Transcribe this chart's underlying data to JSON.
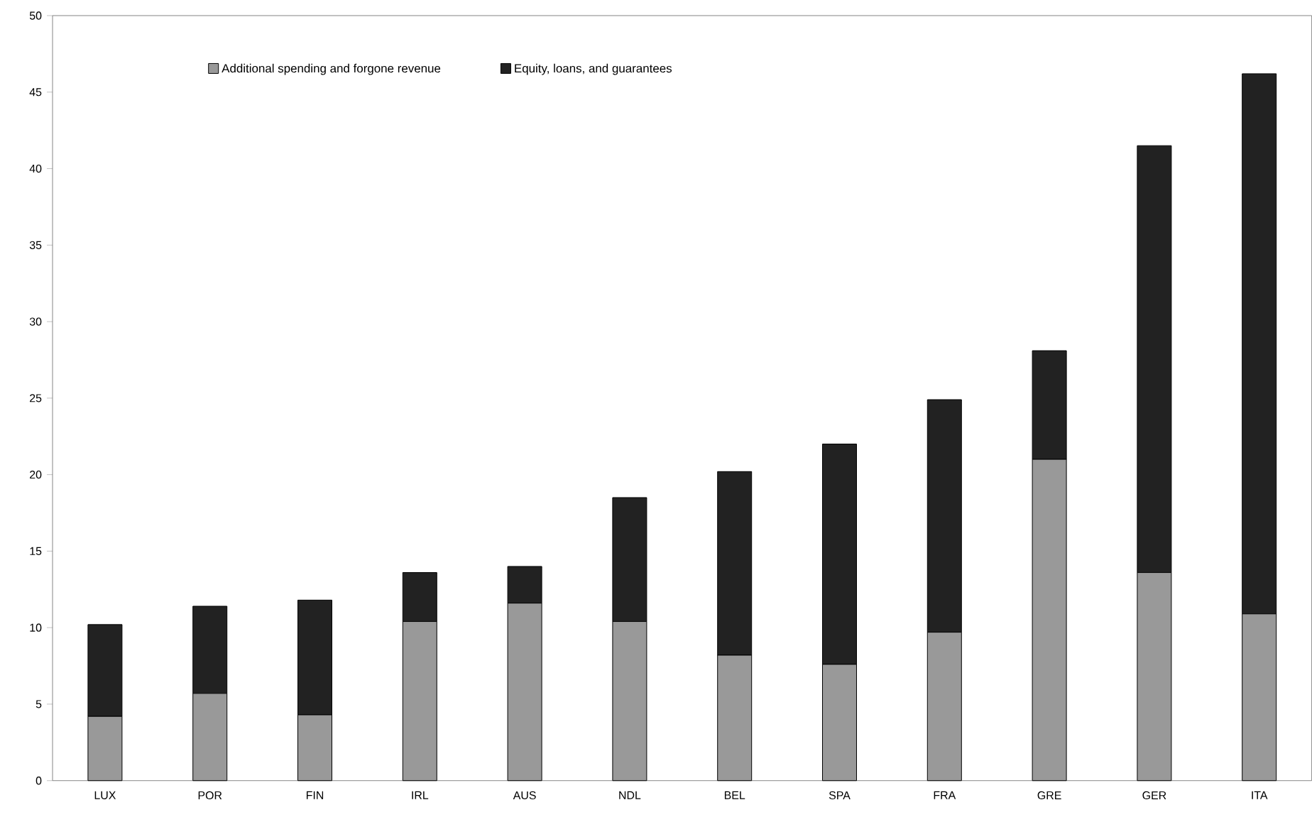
{
  "chart_data": {
    "type": "bar",
    "stacked": true,
    "categories": [
      "LUX",
      "POR",
      "FIN",
      "IRL",
      "AUS",
      "NDL",
      "BEL",
      "SPA",
      "FRA",
      "GRE",
      "GER",
      "ITA"
    ],
    "series": [
      {
        "name": "Additional spending and forgone revenue",
        "color": "#999999",
        "values": [
          4.2,
          5.7,
          4.3,
          10.4,
          11.6,
          10.4,
          8.2,
          7.6,
          9.7,
          21.0,
          13.6,
          10.9
        ]
      },
      {
        "name": "Equity, loans, and guarantees",
        "color": "#222222",
        "values": [
          6.0,
          5.7,
          7.5,
          3.2,
          2.4,
          8.1,
          12.0,
          14.4,
          15.2,
          7.1,
          27.9,
          35.3
        ]
      }
    ],
    "ylim": [
      0,
      50
    ],
    "yticks": [
      0,
      5,
      10,
      15,
      20,
      25,
      30,
      35,
      40,
      45,
      50
    ],
    "grid": false,
    "legend": "top"
  }
}
